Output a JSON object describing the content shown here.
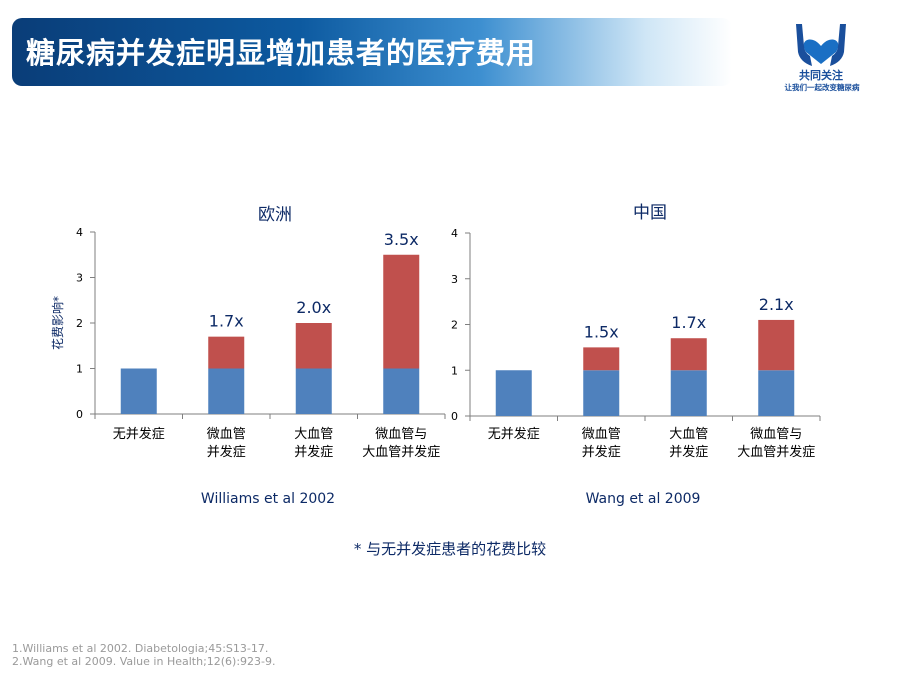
{
  "slide": {
    "title": "糖尿病并发症明显增加患者的医疗费用",
    "logo_line1": "共同关注",
    "logo_line2": "让我们一起改变糖尿病",
    "footnote": "* 与无并发症患者的花费比较",
    "references": [
      "1.Williams et al 2002. Diabetologia;45:S13-17.",
      "2.Wang et al 2009. Value in Health;12(6):923-9."
    ]
  },
  "colors": {
    "base": "#4f81bd",
    "increment": "#c0504d",
    "axis": "#7f7f7f",
    "text_dark": "#0d2a66"
  },
  "chart_data": [
    {
      "type": "bar",
      "stacked": true,
      "title": "欧洲",
      "ylabel": "花费影响*",
      "source": "Williams et al 2002",
      "categories": [
        [
          "无并发症"
        ],
        [
          "微血管",
          "并发症"
        ],
        [
          "大血管",
          "并发症"
        ],
        [
          "微血管与",
          "大血管并发症"
        ]
      ],
      "yticks": [
        "0",
        "1",
        "2",
        "3",
        "4"
      ],
      "ylim": [
        0,
        4
      ],
      "totals": [
        1.0,
        1.7,
        2.0,
        3.5
      ],
      "data_labels": [
        "",
        "1.7x",
        "2.0x",
        "3.5x"
      ]
    },
    {
      "type": "bar",
      "stacked": true,
      "title": "中国",
      "ylabel": "",
      "source": "Wang et al 2009",
      "categories": [
        [
          "无并发症"
        ],
        [
          "微血管",
          "并发症"
        ],
        [
          "大血管",
          "并发症"
        ],
        [
          "微血管与",
          "大血管并发症"
        ]
      ],
      "yticks": [
        "0",
        "1",
        "2",
        "3",
        "4"
      ],
      "ylim": [
        0,
        4
      ],
      "totals": [
        1.0,
        1.5,
        1.7,
        2.1
      ],
      "data_labels": [
        "",
        "1.5x",
        "1.7x",
        "2.1x"
      ]
    }
  ]
}
